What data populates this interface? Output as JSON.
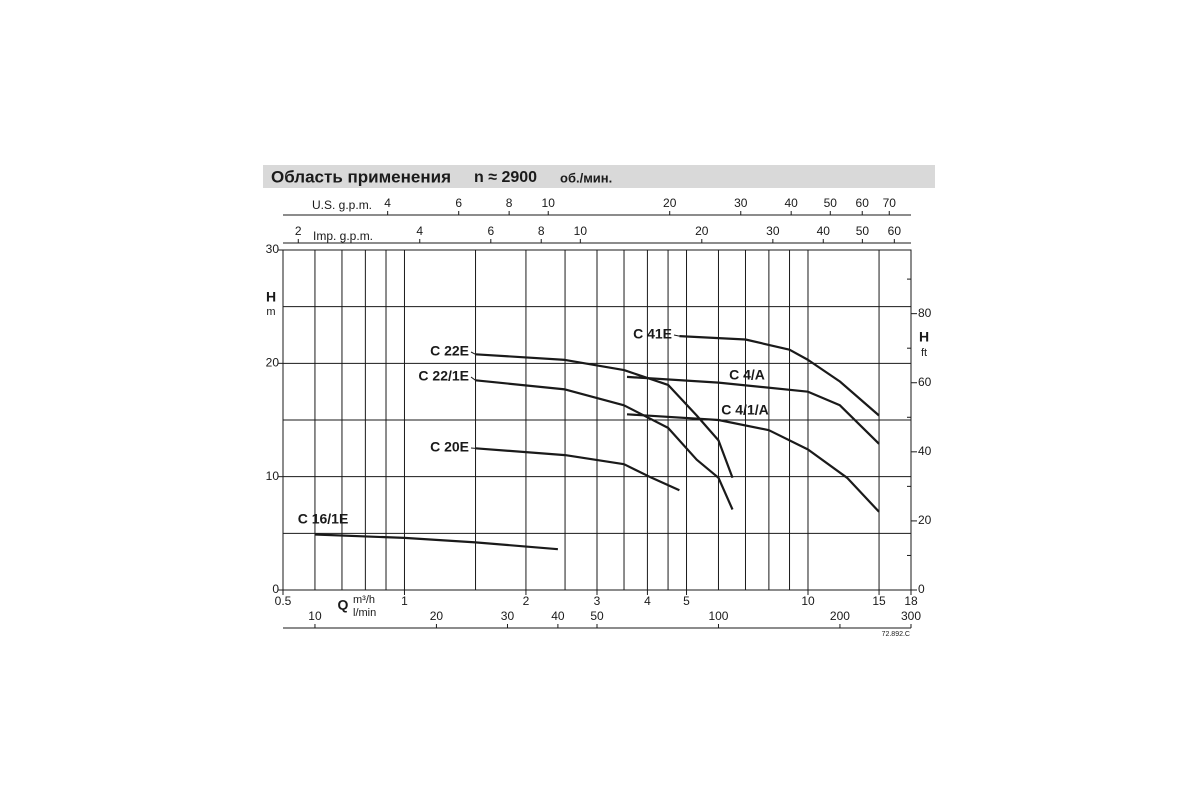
{
  "chart_data": {
    "type": "line",
    "title": "Область применения",
    "subtitle": "n ≈ 2900",
    "speed_unit": "об./мин.",
    "x_label": "Q",
    "x_unit": "m³/h",
    "y_label": "H",
    "y_unit": "m",
    "y2_label": "H",
    "y2_unit": "ft",
    "note": "72.892.C",
    "xlog": true,
    "xlim": [
      0.5,
      18
    ],
    "xticks": [
      0.5,
      1,
      2,
      3,
      4,
      5,
      10,
      15,
      18
    ],
    "xgrid": [
      0.6,
      0.7,
      0.8,
      0.9,
      1,
      1.5,
      2,
      2.5,
      3,
      3.5,
      4,
      4.5,
      5,
      6,
      7,
      8,
      9,
      10,
      15
    ],
    "ylim": [
      0,
      30
    ],
    "yticks": [
      0,
      10,
      20,
      30
    ],
    "ygrid": [
      5,
      10,
      15,
      20,
      25
    ],
    "y2lim": [
      0,
      98.425
    ],
    "y2ticks": [
      0,
      20,
      40,
      60,
      80
    ],
    "y2minor": [
      10,
      30,
      50,
      70,
      90
    ],
    "secondary_x_axes": [
      {
        "label": "l/min",
        "xlim": [
          8.333,
          300
        ],
        "xticks": [
          10,
          20,
          30,
          40,
          50,
          100,
          200,
          300
        ]
      },
      {
        "label": "U.S. g.p.m.",
        "xlim": [
          2.2015,
          79.25
        ],
        "xticks": [
          4,
          6,
          8,
          10,
          20,
          30,
          40,
          50,
          60,
          70
        ]
      },
      {
        "label": "Imp. g.p.m.",
        "xlim": [
          1.833,
          65.99
        ],
        "xticks": [
          2,
          4,
          6,
          8,
          10,
          20,
          30,
          40,
          50,
          60
        ]
      }
    ],
    "series": [
      {
        "name": "C 41E",
        "color": "#1a1a1a",
        "x": [
          4.8,
          7,
          9,
          10,
          12,
          15
        ],
        "values": [
          22.4,
          22.1,
          21.2,
          20.3,
          18.4,
          15.4
        ]
      },
      {
        "name": "C 22E",
        "color": "#1a1a1a",
        "x": [
          1.5,
          2.5,
          3.5,
          4.5,
          5.3,
          6,
          6.5
        ],
        "values": [
          20.8,
          20.3,
          19.4,
          18.1,
          15.4,
          13.2,
          9.9
        ]
      },
      {
        "name": "C 22/1E",
        "color": "#1a1a1a",
        "x": [
          1.5,
          2.5,
          3.5,
          4.5,
          5.3,
          6,
          6.5
        ],
        "values": [
          18.5,
          17.7,
          16.3,
          14.3,
          11.5,
          9.9,
          7.1
        ]
      },
      {
        "name": "C 4/A",
        "color": "#1a1a1a",
        "x": [
          3.56,
          6,
          10,
          12,
          15
        ],
        "values": [
          18.8,
          18.3,
          17.5,
          16.3,
          12.9
        ]
      },
      {
        "name": "C 4/1/A",
        "color": "#1a1a1a",
        "x": [
          3.56,
          6,
          8,
          10,
          12.5,
          15
        ],
        "values": [
          15.5,
          15.0,
          14.1,
          12.4,
          9.9,
          6.9
        ]
      },
      {
        "name": "C 20E",
        "color": "#1a1a1a",
        "x": [
          1.5,
          2.5,
          3.5,
          4.1,
          4.8
        ],
        "values": [
          12.5,
          11.9,
          11.1,
          9.9,
          8.8
        ]
      },
      {
        "name": "C 16/1E",
        "color": "#1a1a1a",
        "x": [
          0.6,
          1,
          1.5,
          2.4
        ],
        "values": [
          4.9,
          4.6,
          4.2,
          3.6
        ]
      }
    ]
  }
}
